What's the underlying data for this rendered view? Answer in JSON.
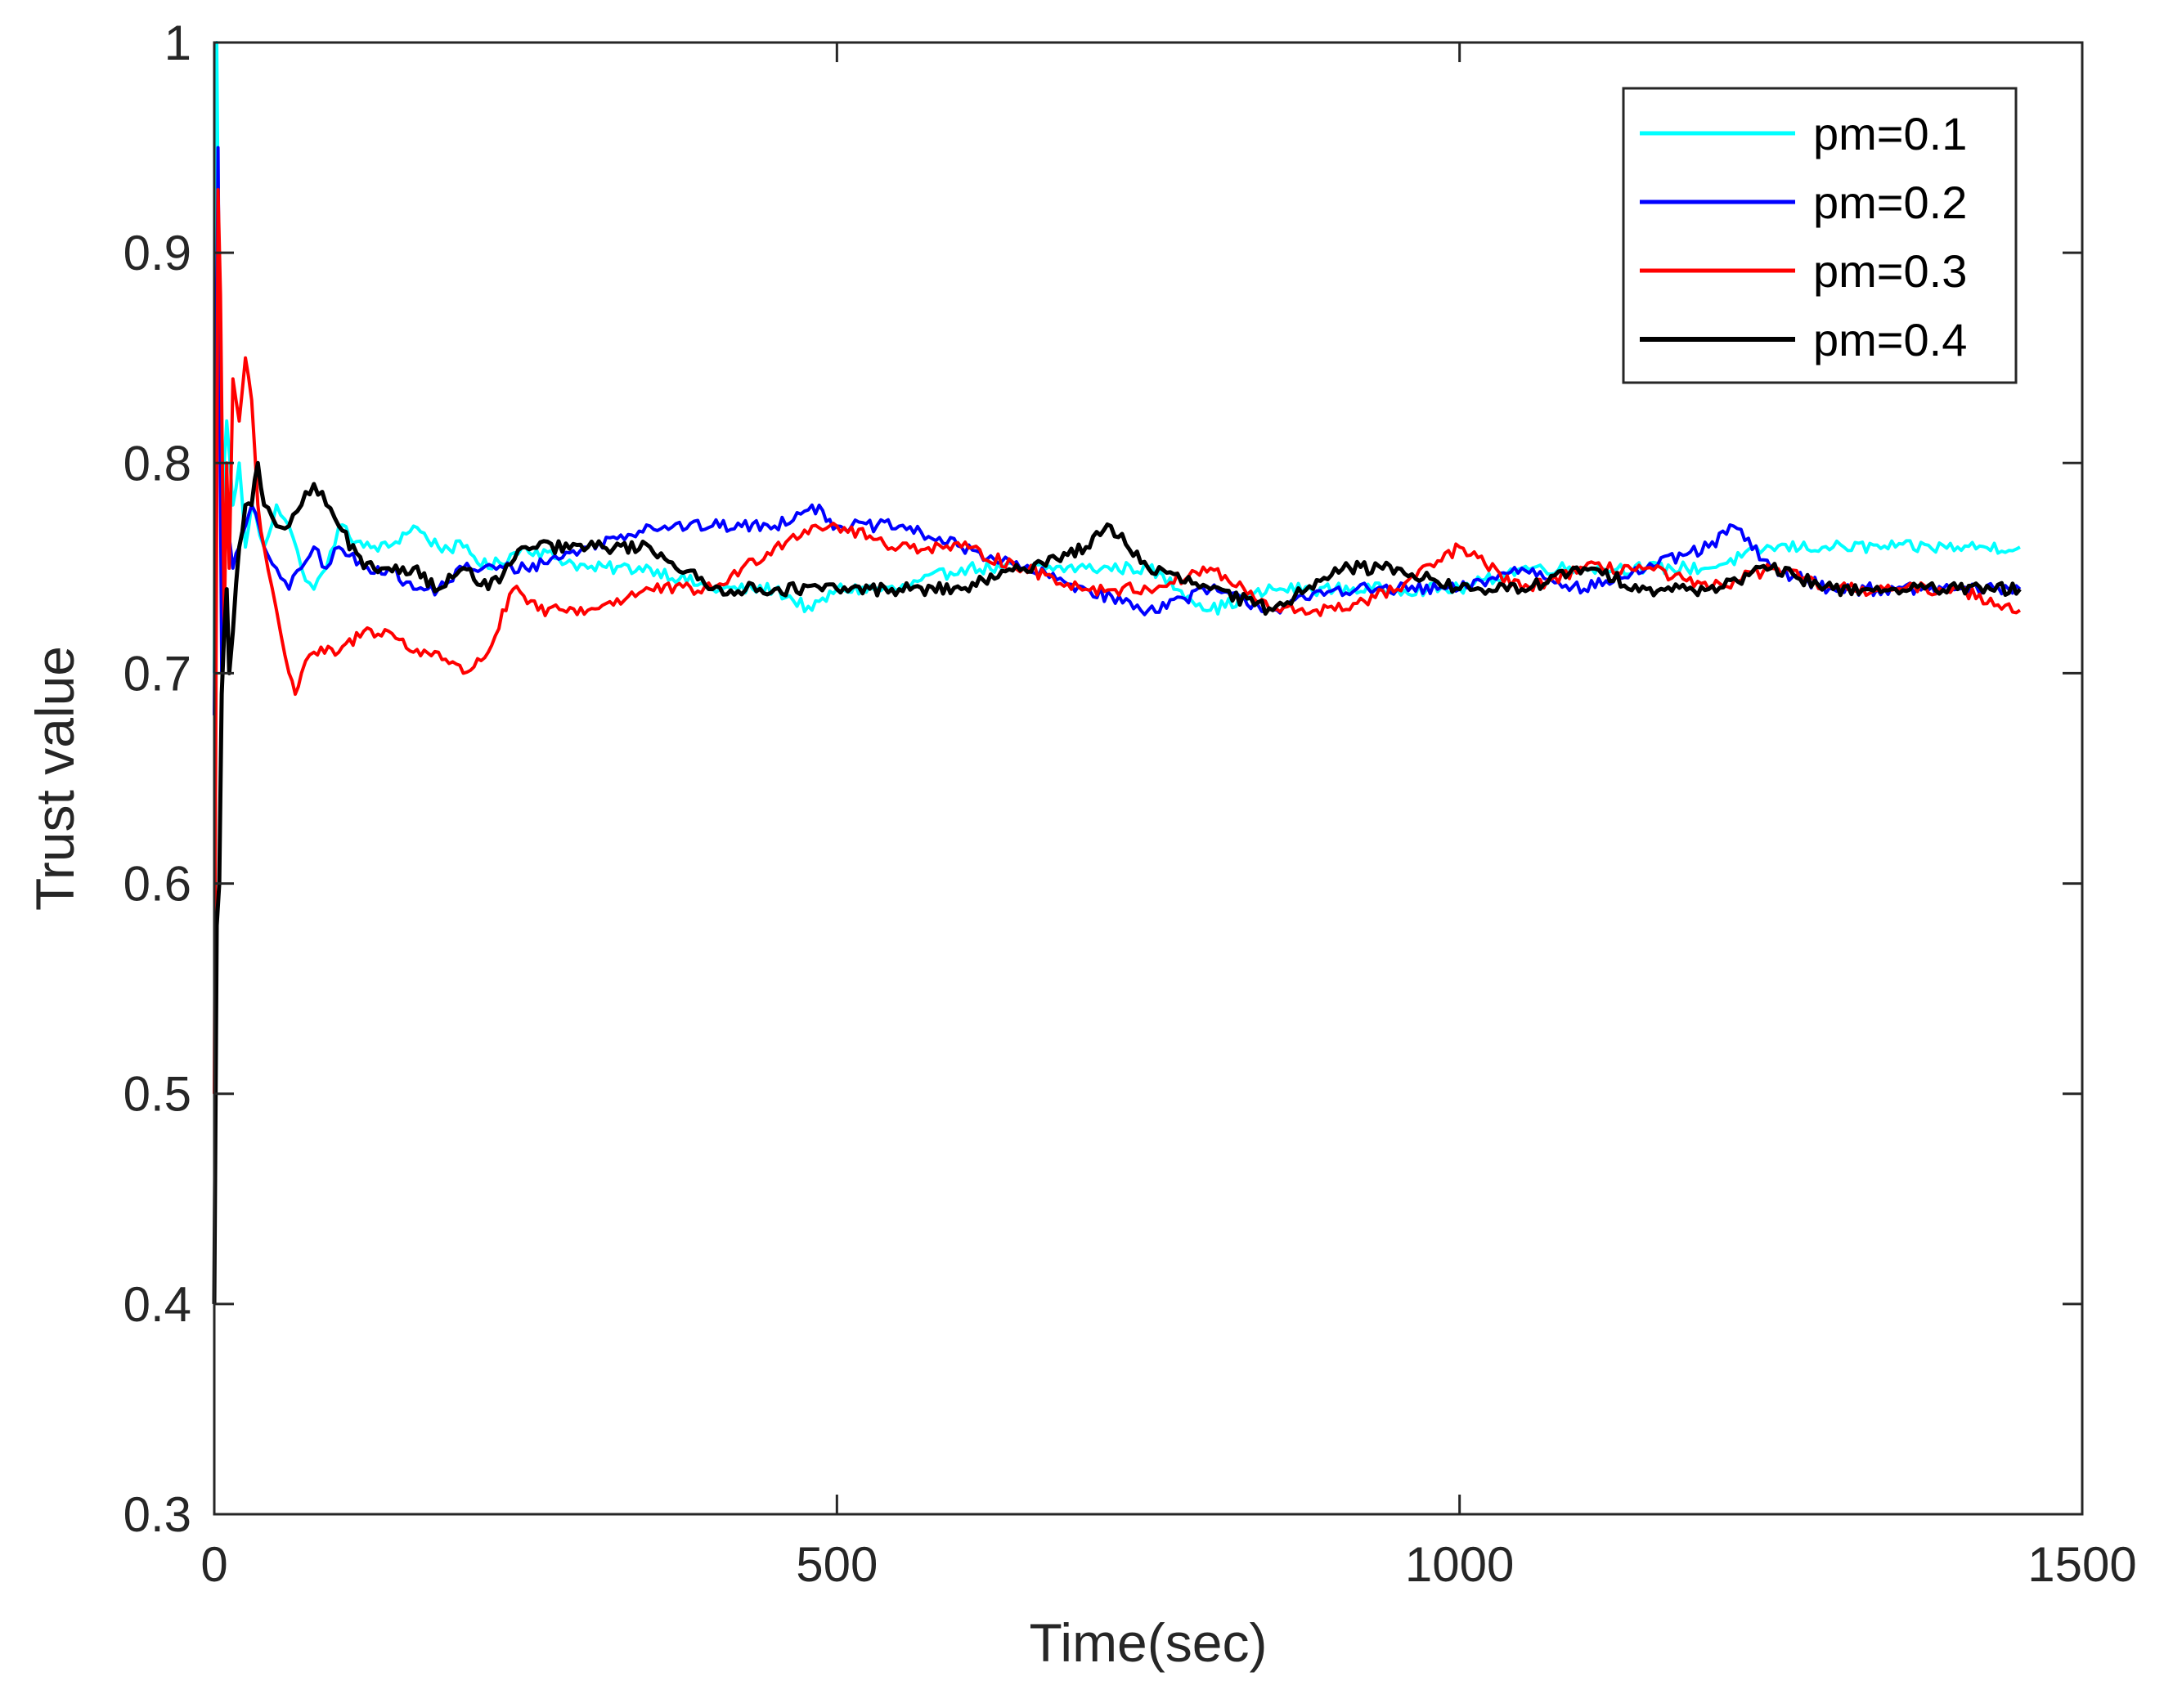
{
  "chart_data": {
    "type": "line",
    "title": "",
    "xlabel": "Time(sec)",
    "ylabel": "Trust value",
    "xlim": [
      0,
      1500
    ],
    "ylim": [
      0.3,
      1.0
    ],
    "xticks": [
      0,
      500,
      1000,
      1500
    ],
    "xtick_labels": [
      "0",
      "500",
      "1000",
      "1500"
    ],
    "yticks": [
      0.3,
      0.4,
      0.5,
      0.6,
      0.7,
      0.8,
      0.9,
      1.0
    ],
    "ytick_labels": [
      "0.3",
      "0.4",
      "0.5",
      "0.6",
      "0.7",
      "0.8",
      "0.9",
      "1"
    ],
    "grid": false,
    "legend_position": "top-right",
    "series": [
      {
        "name": "pm=0.1",
        "color": "#00ffff",
        "x": [
          0,
          2,
          4,
          6,
          8,
          10,
          15,
          20,
          25,
          30,
          40,
          50,
          60,
          70,
          80,
          90,
          100,
          120,
          140,
          160,
          180,
          200,
          220,
          250,
          300,
          350,
          400,
          450,
          480,
          500,
          550,
          600,
          650,
          700,
          750,
          800,
          850,
          900,
          950,
          1000,
          1050,
          1100,
          1150,
          1200,
          1250,
          1300,
          1350,
          1400,
          1450
        ],
        "values": [
          0.7,
          1.0,
          0.86,
          0.76,
          0.8,
          0.82,
          0.78,
          0.8,
          0.76,
          0.78,
          0.76,
          0.78,
          0.77,
          0.75,
          0.74,
          0.75,
          0.77,
          0.76,
          0.76,
          0.77,
          0.76,
          0.76,
          0.75,
          0.76,
          0.75,
          0.75,
          0.74,
          0.74,
          0.73,
          0.74,
          0.74,
          0.75,
          0.75,
          0.75,
          0.75,
          0.73,
          0.74,
          0.74,
          0.74,
          0.74,
          0.75,
          0.75,
          0.75,
          0.75,
          0.76,
          0.76,
          0.76,
          0.76,
          0.76
        ]
      },
      {
        "name": "pm=0.2",
        "color": "#0000ff",
        "x": [
          0,
          3,
          6,
          10,
          15,
          20,
          25,
          30,
          40,
          50,
          60,
          70,
          80,
          90,
          100,
          120,
          140,
          160,
          180,
          200,
          250,
          300,
          350,
          400,
          450,
          480,
          500,
          550,
          600,
          650,
          700,
          750,
          800,
          850,
          900,
          950,
          1000,
          1050,
          1100,
          1150,
          1200,
          1220,
          1250,
          1300,
          1350,
          1400,
          1450
        ],
        "values": [
          0.68,
          0.95,
          0.7,
          0.78,
          0.75,
          0.76,
          0.77,
          0.78,
          0.76,
          0.75,
          0.74,
          0.75,
          0.76,
          0.75,
          0.76,
          0.75,
          0.75,
          0.74,
          0.74,
          0.75,
          0.75,
          0.76,
          0.77,
          0.77,
          0.77,
          0.78,
          0.77,
          0.77,
          0.76,
          0.75,
          0.74,
          0.73,
          0.74,
          0.73,
          0.74,
          0.74,
          0.74,
          0.75,
          0.74,
          0.75,
          0.76,
          0.77,
          0.75,
          0.74,
          0.74,
          0.74,
          0.74
        ]
      },
      {
        "name": "pm=0.3",
        "color": "#ff0000",
        "x": [
          0,
          3,
          5,
          8,
          10,
          12,
          15,
          20,
          25,
          30,
          35,
          40,
          50,
          60,
          65,
          70,
          80,
          100,
          120,
          140,
          160,
          180,
          200,
          220,
          240,
          260,
          280,
          300,
          350,
          400,
          450,
          480,
          500,
          550,
          600,
          650,
          700,
          750,
          800,
          850,
          900,
          950,
          1000,
          1050,
          1100,
          1150,
          1200,
          1250,
          1300,
          1350,
          1400,
          1450
        ],
        "values": [
          0.5,
          0.93,
          0.88,
          0.72,
          0.8,
          0.75,
          0.84,
          0.82,
          0.85,
          0.83,
          0.78,
          0.76,
          0.73,
          0.7,
          0.69,
          0.7,
          0.71,
          0.71,
          0.72,
          0.72,
          0.71,
          0.71,
          0.7,
          0.71,
          0.74,
          0.73,
          0.73,
          0.73,
          0.74,
          0.74,
          0.76,
          0.77,
          0.77,
          0.76,
          0.76,
          0.75,
          0.74,
          0.74,
          0.75,
          0.73,
          0.73,
          0.74,
          0.76,
          0.74,
          0.75,
          0.75,
          0.74,
          0.75,
          0.74,
          0.74,
          0.74,
          0.73
        ]
      },
      {
        "name": "pm=0.4",
        "color": "#000000",
        "x": [
          0,
          2,
          4,
          6,
          8,
          10,
          12,
          15,
          20,
          25,
          30,
          35,
          40,
          50,
          60,
          70,
          80,
          90,
          100,
          120,
          140,
          160,
          180,
          200,
          220,
          250,
          300,
          350,
          400,
          450,
          500,
          550,
          600,
          650,
          700,
          720,
          750,
          800,
          850,
          900,
          950,
          1000,
          1050,
          1100,
          1150,
          1200,
          1250,
          1300,
          1350,
          1400,
          1450
        ],
        "values": [
          0.4,
          0.58,
          0.6,
          0.69,
          0.72,
          0.74,
          0.7,
          0.72,
          0.76,
          0.78,
          0.78,
          0.8,
          0.78,
          0.77,
          0.77,
          0.78,
          0.79,
          0.78,
          0.77,
          0.75,
          0.75,
          0.75,
          0.74,
          0.75,
          0.74,
          0.76,
          0.76,
          0.76,
          0.74,
          0.74,
          0.74,
          0.74,
          0.74,
          0.75,
          0.76,
          0.77,
          0.75,
          0.74,
          0.73,
          0.75,
          0.75,
          0.74,
          0.74,
          0.75,
          0.74,
          0.74,
          0.75,
          0.74,
          0.74,
          0.74,
          0.74
        ]
      }
    ]
  }
}
